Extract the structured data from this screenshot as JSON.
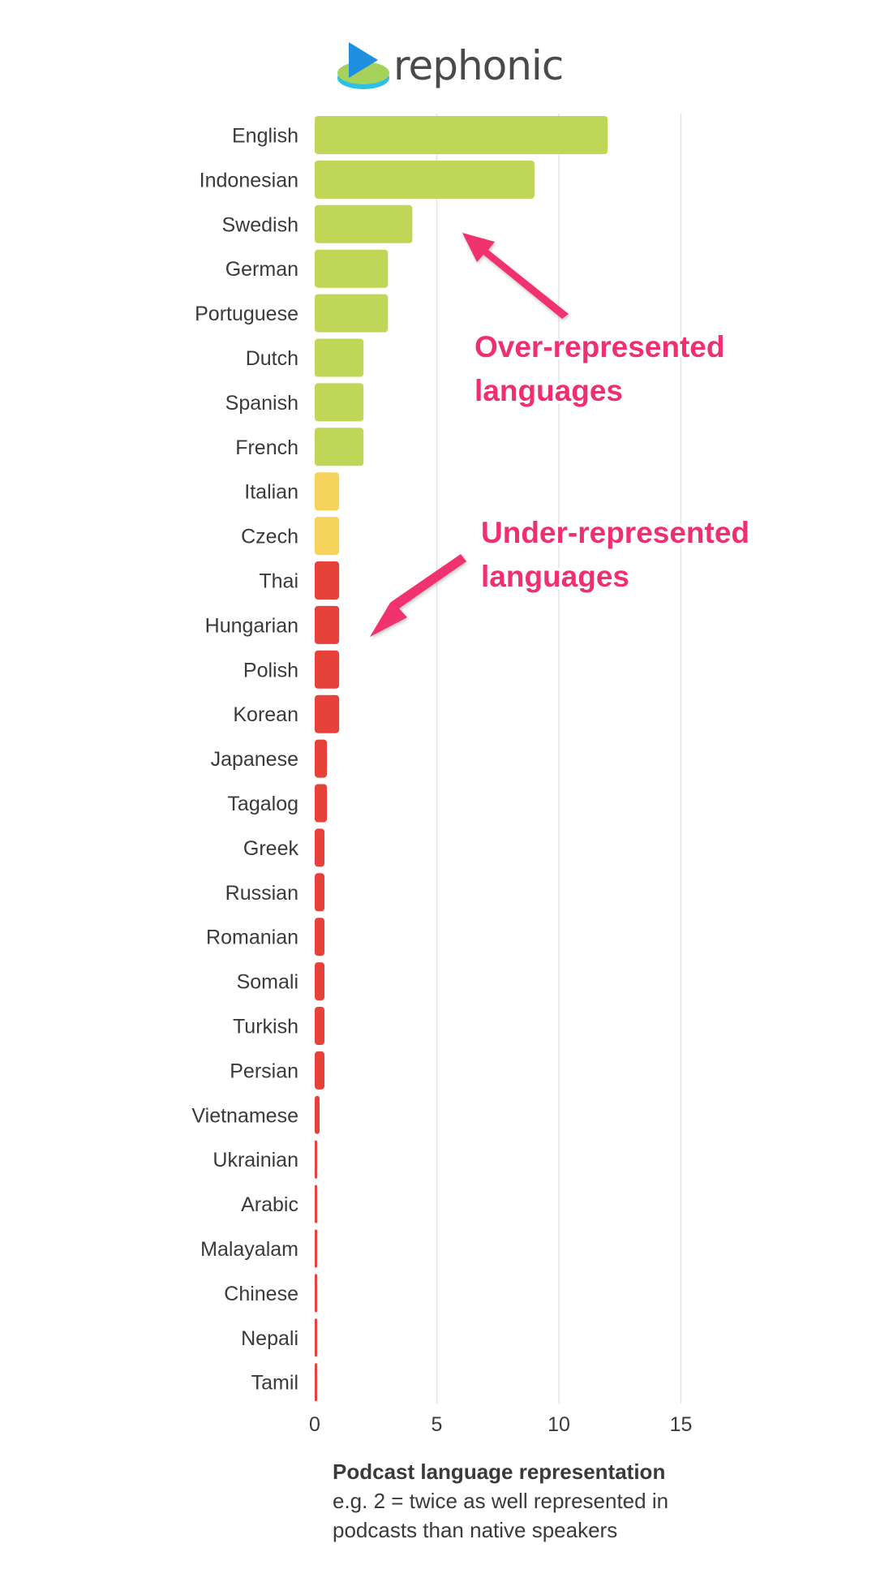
{
  "brand": {
    "name": "rephonic",
    "logo_icon": "play-disc-icon"
  },
  "chart_data": {
    "type": "bar",
    "orientation": "horizontal",
    "categories": [
      "English",
      "Indonesian",
      "Swedish",
      "German",
      "Portuguese",
      "Dutch",
      "Spanish",
      "French",
      "Italian",
      "Czech",
      "Thai",
      "Hungarian",
      "Polish",
      "Korean",
      "Japanese",
      "Tagalog",
      "Greek",
      "Russian",
      "Romanian",
      "Somali",
      "Turkish",
      "Persian",
      "Vietnamese",
      "Ukrainian",
      "Arabic",
      "Malayalam",
      "Chinese",
      "Nepali",
      "Tamil"
    ],
    "values": [
      12,
      9,
      4,
      3,
      3,
      2,
      2,
      2,
      1,
      1,
      1,
      1,
      1,
      1,
      0.5,
      0.5,
      0.4,
      0.4,
      0.4,
      0.4,
      0.4,
      0.4,
      0.2,
      0.1,
      0.1,
      0.1,
      0.1,
      0.1,
      0.1
    ],
    "xlim": [
      0,
      15
    ],
    "xticks": [
      0,
      5,
      10,
      15
    ],
    "grid": true,
    "colors": {
      "over": "#bfd657",
      "neutral": "#f6d35b",
      "under": "#e6423a",
      "annotation": "#f0306e",
      "grid": "#e4e4e4"
    },
    "color_groups": {
      "over_count": 8,
      "neutral_count": 2
    },
    "annotations": [
      {
        "lines": [
          "Over-represented",
          "languages"
        ]
      },
      {
        "lines": [
          "Under-represented",
          "languages"
        ]
      }
    ]
  },
  "caption": {
    "title": "Podcast language representation",
    "lines": [
      "e.g. 2 = twice as well represented in",
      "podcasts than native speakers"
    ]
  }
}
